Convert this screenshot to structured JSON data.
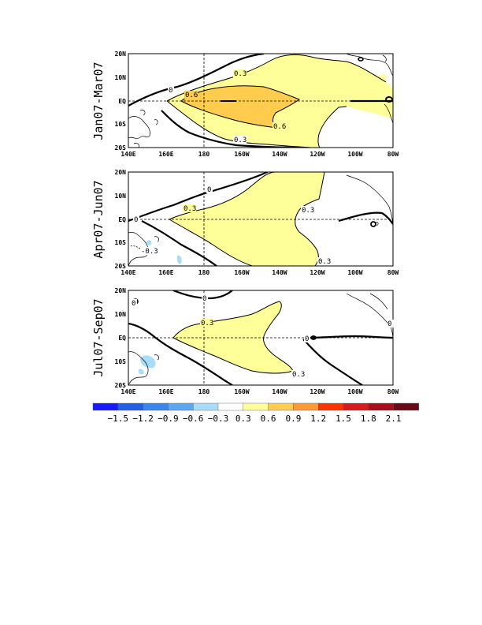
{
  "chart_data": {
    "type": "contour-map",
    "units_note": "",
    "panels": [
      {
        "period_label": "Jan07-Mar07",
        "lon_ticks": [
          "140E",
          "160E",
          "180",
          "160W",
          "140W",
          "120W",
          "100W",
          "80W"
        ],
        "lat_ticks": [
          "20N",
          "10N",
          "EQ",
          "10S",
          "20S"
        ],
        "lon_range": [
          140,
          280
        ],
        "lat_range": [
          -20,
          20
        ],
        "contour_labels": [
          "0",
          "0.3",
          "0.6",
          "0.6",
          "0.3",
          "0",
          "0",
          "0"
        ],
        "max_level_shaded": 0.9,
        "min_level_shaded": 0.3
      },
      {
        "period_label": "Apr07-Jun07",
        "lon_ticks": [
          "140E",
          "160E",
          "180",
          "160W",
          "140W",
          "120W",
          "100W",
          "80W"
        ],
        "lat_ticks": [
          "20N",
          "10N",
          "EQ",
          "10S",
          "20S"
        ],
        "lon_range": [
          140,
          280
        ],
        "lat_range": [
          -20,
          20
        ],
        "contour_labels": [
          "0",
          "0.3",
          "0.3",
          "0",
          "-0.3",
          "0.3",
          "0"
        ],
        "max_level_shaded": 0.6,
        "min_level_shaded": -0.6
      },
      {
        "period_label": "Jul07-Sep07",
        "lon_ticks": [
          "140E",
          "160E",
          "180",
          "160W",
          "140W",
          "120W",
          "100W",
          "80W"
        ],
        "lat_ticks": [
          "20N",
          "10N",
          "EQ",
          "10S",
          "20S"
        ],
        "lon_range": [
          140,
          280
        ],
        "lat_range": [
          -20,
          20
        ],
        "contour_labels": [
          "0",
          "0.3",
          "0.3",
          "0",
          "0",
          "0"
        ],
        "max_level_shaded": 0.6,
        "min_level_shaded": -0.6
      }
    ],
    "colorbar": {
      "tick_labels": [
        "-1.5",
        "-1.2",
        "-0.9",
        "-0.6",
        "-0.3",
        "0.3",
        "0.6",
        "0.9",
        "1.2",
        "1.5",
        "1.8",
        "2.1"
      ],
      "levels": [
        -1.5,
        -1.2,
        -0.9,
        -0.6,
        -0.3,
        0.3,
        0.6,
        0.9,
        1.2,
        1.5,
        1.8,
        2.1
      ],
      "colors": [
        "#1a1aff",
        "#2060e8",
        "#3a86ee",
        "#5aa6f2",
        "#a8dcf8",
        "#ffffff",
        "#ffff99",
        "#ffcc4d",
        "#ff9933",
        "#ff3300",
        "#d91a1a",
        "#a80f1a",
        "#6b0a1a"
      ]
    }
  },
  "colors": {
    "pos_03": "#ffff99",
    "pos_06": "#ffcc4d",
    "neg_03": "#a8dcf8"
  }
}
